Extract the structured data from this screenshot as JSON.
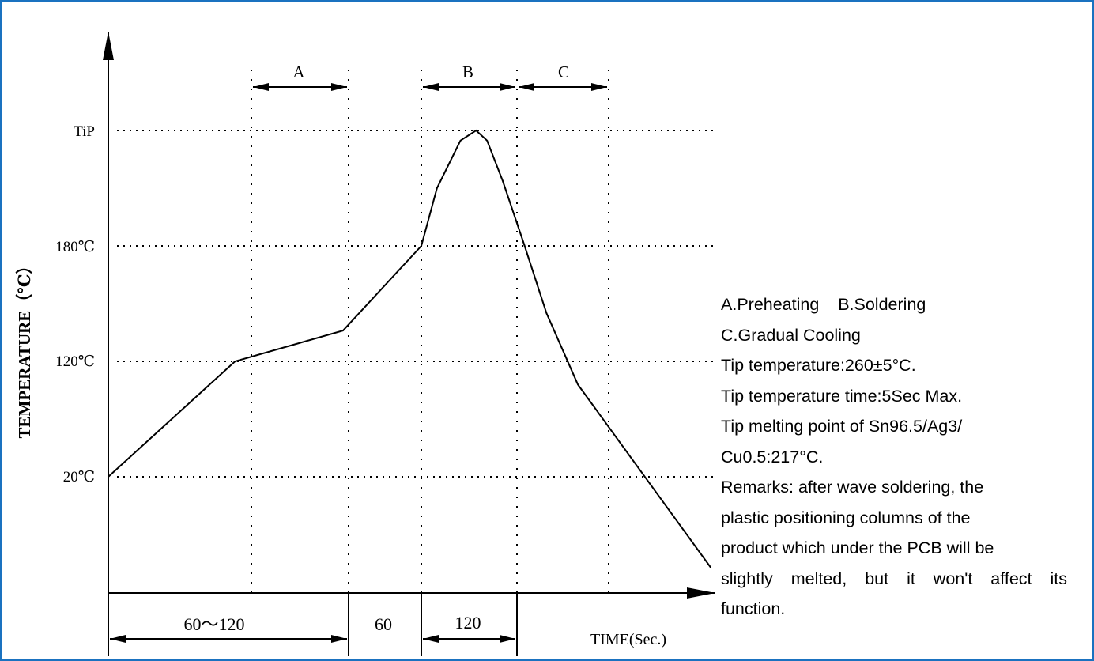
{
  "chart_data": {
    "type": "line",
    "ylabel": "TEMPERATURE（℃）",
    "xlabel": "TIME(Sec.)",
    "y_ticks": [
      "TiP",
      "180℃",
      "120℃",
      "20℃"
    ],
    "y_tick_values": [
      260,
      180,
      120,
      20
    ],
    "zones": [
      {
        "label": "A",
        "name": "A.Preheating"
      },
      {
        "label": "B",
        "name": "B.Soldering"
      },
      {
        "label": "C",
        "name": "C.Gradual Cooling"
      }
    ],
    "time_intervals": [
      "60～120",
      "60",
      "120"
    ],
    "grid": "dotted",
    "profile": [
      {
        "t": 0,
        "temp": 20
      },
      {
        "t": 81,
        "temp": 120
      },
      {
        "t": 150,
        "temp": 136
      },
      {
        "t": 200,
        "temp": 180
      },
      {
        "t": 210,
        "temp": 220
      },
      {
        "t": 225,
        "temp": 253
      },
      {
        "t": 235,
        "temp": 260
      },
      {
        "t": 242,
        "temp": 253
      },
      {
        "t": 252,
        "temp": 225
      },
      {
        "t": 266,
        "temp": 180
      },
      {
        "t": 280,
        "temp": 145
      },
      {
        "t": 300,
        "temp": 100
      },
      {
        "t": 385,
        "temp": -50
      }
    ]
  },
  "notes": {
    "line1": "A.Preheating    B.Soldering",
    "line2": "C.Gradual Cooling",
    "line3": "Tip temperature:260±5°C.",
    "line4": "Tip temperature time:5Sec Max.",
    "line5": "Tip melting point of Sn96.5/Ag3/",
    "line6": "Cu0.5:217°C.",
    "line7": "Remarks: after wave soldering, the",
    "line8": "plastic positioning columns of the",
    "line9": "product which under the PCB will be",
    "line10": "slightly melted, but it won't affect its",
    "line11": "function."
  },
  "colors": {
    "frame": "#1a72c0",
    "ink": "#000000"
  }
}
